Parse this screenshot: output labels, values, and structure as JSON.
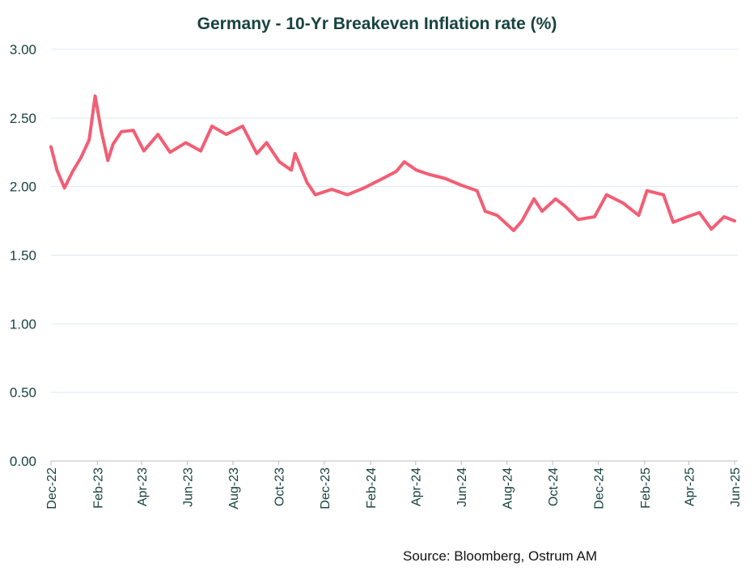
{
  "chart_data": {
    "type": "line",
    "title": "Germany  - 10-Yr Breakeven Inflation rate (%)",
    "xlabel": "",
    "ylabel": "",
    "ylim": [
      0,
      3
    ],
    "yticks": [
      "0.00",
      "0.50",
      "1.00",
      "1.50",
      "2.00",
      "2.50",
      "3.00"
    ],
    "xticks": [
      "Dec-22",
      "Feb-23",
      "Apr-23",
      "Jun-23",
      "Aug-23",
      "Oct-23",
      "Dec-23",
      "Feb-24",
      "Apr-24",
      "Jun-24",
      "Aug-24",
      "Oct-24",
      "Dec-24",
      "Feb-25",
      "Apr-25",
      "Jun-25"
    ],
    "xlim": [
      "2022-12-01",
      "2025-06-05"
    ],
    "grid": "horizontal",
    "legend": "none",
    "line_color": "#f25e74",
    "series": [
      {
        "x": [
          "2022-12-01",
          "2022-12-09",
          "2022-12-19",
          "2022-12-30",
          "2023-01-10",
          "2023-01-21",
          "2023-01-29",
          "2023-02-06",
          "2023-02-15",
          "2023-02-22",
          "2023-03-05",
          "2023-03-21",
          "2023-04-04",
          "2023-04-23",
          "2023-05-09",
          "2023-05-30",
          "2023-06-19",
          "2023-07-04",
          "2023-07-23",
          "2023-08-14",
          "2023-09-02",
          "2023-09-15",
          "2023-10-02",
          "2023-10-18",
          "2023-10-23",
          "2023-11-08",
          "2023-11-19",
          "2023-12-11",
          "2024-01-01",
          "2024-01-23",
          "2024-02-14",
          "2024-03-06",
          "2024-03-17",
          "2024-04-02",
          "2024-04-18",
          "2024-05-10",
          "2024-06-01",
          "2024-06-22",
          "2024-07-03",
          "2024-07-19",
          "2024-08-10",
          "2024-08-21",
          "2024-09-06",
          "2024-09-17",
          "2024-10-05",
          "2024-10-19",
          "2024-11-04",
          "2024-11-26",
          "2024-12-12",
          "2025-01-03",
          "2025-01-24",
          "2025-02-04",
          "2025-02-26",
          "2025-03-11",
          "2025-03-30",
          "2025-04-15",
          "2025-05-01",
          "2025-05-18",
          "2025-06-01"
        ],
        "values": [
          2.29,
          2.12,
          1.99,
          2.11,
          2.21,
          2.34,
          2.66,
          2.41,
          2.19,
          2.31,
          2.4,
          2.41,
          2.26,
          2.38,
          2.25,
          2.32,
          2.26,
          2.44,
          2.38,
          2.44,
          2.24,
          2.32,
          2.18,
          2.12,
          2.24,
          2.03,
          1.94,
          1.98,
          1.94,
          1.99,
          2.05,
          2.11,
          2.18,
          2.12,
          2.09,
          2.06,
          2.01,
          1.97,
          1.82,
          1.79,
          1.68,
          1.75,
          1.91,
          1.82,
          1.91,
          1.85,
          1.76,
          1.78,
          1.94,
          1.88,
          1.79,
          1.97,
          1.94,
          1.74,
          1.78,
          1.81,
          1.69,
          1.78,
          1.75
        ]
      }
    ]
  },
  "source": "Source: Bloomberg, Ostrum AM"
}
